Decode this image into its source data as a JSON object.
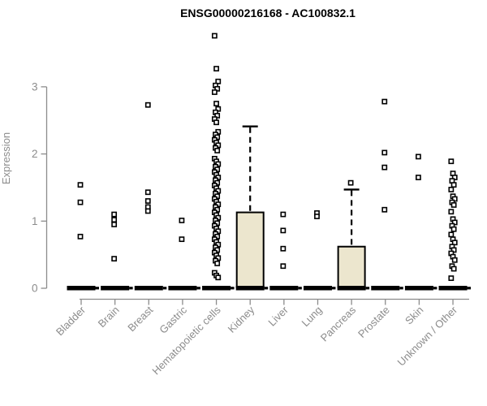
{
  "header": {
    "title": "ENSG00000216168 - AC100832.1"
  },
  "colors": {
    "box_fill": "#ECE6CE",
    "axis_gray": "#8C8C8C",
    "data_black": "#000000",
    "background": "#FFFFFF"
  },
  "chart_data": {
    "type": "boxplot",
    "title": "ENSG00000216168 - AC100832.1",
    "xlabel": "",
    "ylabel": "Expression",
    "ylim": [
      0,
      3.8
    ],
    "yticks": [
      0,
      1,
      2,
      3
    ],
    "grid": false,
    "legend": "none",
    "categories": [
      "Bladder",
      "Brain",
      "Breast",
      "Gastric",
      "Hematopoietic cells",
      "Kidney",
      "Liver",
      "Lung",
      "Pancreas",
      "Prostate",
      "Skin",
      "Unknown / Other"
    ],
    "series": [
      {
        "category": "Bladder",
        "zero_bar": true,
        "box": null,
        "outliers": [
          1.54,
          1.28,
          0.77
        ]
      },
      {
        "category": "Brain",
        "zero_bar": true,
        "box": null,
        "outliers": [
          1.1,
          1.02,
          0.95,
          0.44
        ]
      },
      {
        "category": "Breast",
        "zero_bar": true,
        "box": null,
        "outliers": [
          2.73,
          1.43,
          1.3,
          1.21,
          1.15
        ]
      },
      {
        "category": "Gastric",
        "zero_bar": true,
        "box": null,
        "outliers": [
          1.01,
          0.73
        ]
      },
      {
        "category": "Hematopoietic cells",
        "zero_bar": true,
        "box": null,
        "outliers": [
          3.76,
          3.27,
          3.08,
          3.02,
          2.97,
          2.92,
          2.75,
          2.67,
          2.62,
          2.57,
          2.52,
          2.47,
          2.33,
          2.29,
          2.25,
          2.21,
          2.17,
          2.13,
          2.09,
          2.05,
          1.93,
          1.89,
          1.85,
          1.81,
          1.77,
          1.73,
          1.69,
          1.65,
          1.61,
          1.57,
          1.53,
          1.49,
          1.45,
          1.41,
          1.37,
          1.33,
          1.29,
          1.25,
          1.21,
          1.17,
          1.13,
          1.09,
          1.05,
          1.01,
          0.97,
          0.93,
          0.89,
          0.85,
          0.81,
          0.77,
          0.73,
          0.69,
          0.65,
          0.61,
          0.57,
          0.53,
          0.49,
          0.45,
          0.41,
          0.37,
          0.23,
          0.19,
          0.16
        ]
      },
      {
        "category": "Kidney",
        "zero_bar": true,
        "box": {
          "q1": 0,
          "median": 0,
          "q3": 1.13,
          "whisker_low": 0,
          "whisker_high": 2.41
        },
        "outliers": []
      },
      {
        "category": "Liver",
        "zero_bar": true,
        "box": null,
        "outliers": [
          1.1,
          0.86,
          0.59,
          0.33
        ]
      },
      {
        "category": "Lung",
        "zero_bar": true,
        "box": null,
        "outliers": [
          1.12,
          1.07
        ]
      },
      {
        "category": "Pancreas",
        "zero_bar": true,
        "box": {
          "q1": 0,
          "median": 0,
          "q3": 0.62,
          "whisker_low": 0,
          "whisker_high": 1.47
        },
        "outliers": [
          1.57
        ]
      },
      {
        "category": "Prostate",
        "zero_bar": true,
        "box": null,
        "outliers": [
          2.78,
          2.02,
          1.8,
          1.17
        ]
      },
      {
        "category": "Skin",
        "zero_bar": true,
        "box": null,
        "outliers": [
          1.96,
          1.65
        ]
      },
      {
        "category": "Unknown / Other",
        "zero_bar": true,
        "box": null,
        "outliers": [
          1.89,
          1.71,
          1.65,
          1.6,
          1.54,
          1.47,
          1.37,
          1.33,
          1.28,
          1.24,
          1.14,
          1.03,
          0.98,
          0.93,
          0.88,
          0.8,
          0.73,
          0.68,
          0.62,
          0.57,
          0.52,
          0.47,
          0.42,
          0.33,
          0.29,
          0.15
        ]
      }
    ]
  }
}
